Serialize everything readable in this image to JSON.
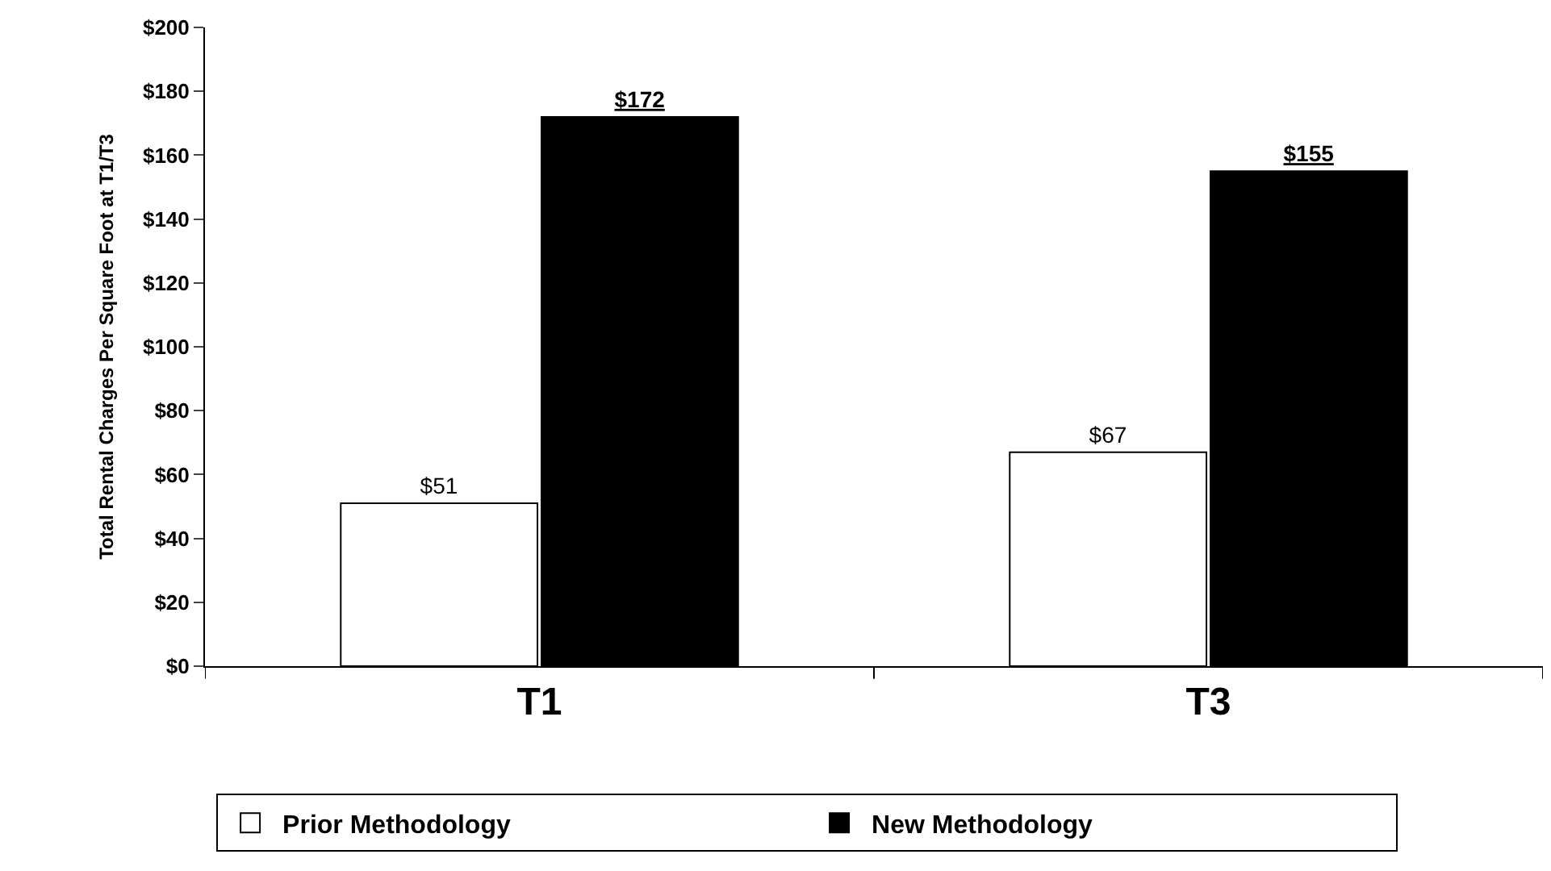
{
  "chart_data": {
    "type": "bar",
    "ylabel": "Total Rental Charges Per Square Foot at T1/T3",
    "categories": [
      "T1",
      "T3"
    ],
    "series": [
      {
        "name": "Prior Methodology",
        "color": "#ffffff",
        "values": [
          51,
          67
        ],
        "value_labels": [
          "$51",
          "$67"
        ]
      },
      {
        "name": "New Methodology",
        "color": "#000000",
        "values": [
          172,
          155
        ],
        "value_labels": [
          "$172",
          "$155"
        ]
      }
    ],
    "ylim": [
      0,
      200
    ],
    "yticks": [
      {
        "value": 0,
        "label": "$0"
      },
      {
        "value": 20,
        "label": "$20"
      },
      {
        "value": 40,
        "label": "$40"
      },
      {
        "value": 60,
        "label": "$60"
      },
      {
        "value": 80,
        "label": "$80"
      },
      {
        "value": 100,
        "label": "$100"
      },
      {
        "value": 120,
        "label": "$120"
      },
      {
        "value": 140,
        "label": "$140"
      },
      {
        "value": 160,
        "label": "$160"
      },
      {
        "value": 180,
        "label": "$180"
      },
      {
        "value": 200,
        "label": "$200"
      }
    ],
    "legend": "bottom"
  }
}
